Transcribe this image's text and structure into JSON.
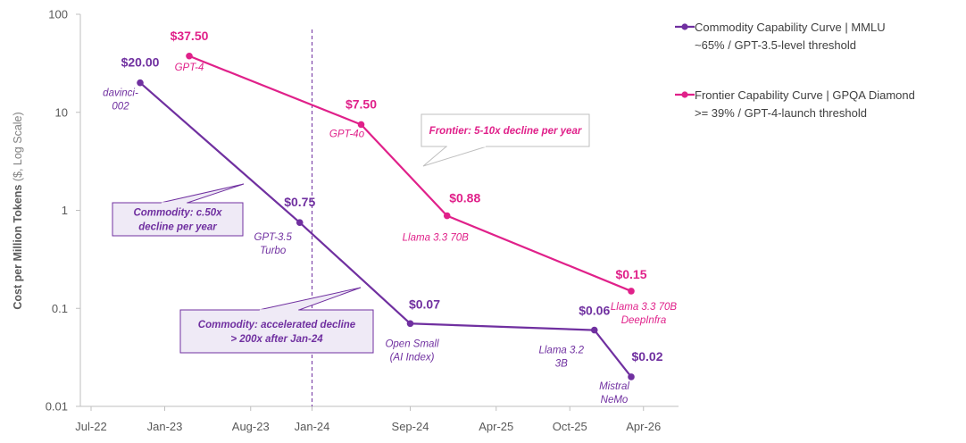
{
  "chart_data": {
    "type": "line",
    "y_scale": "log",
    "ylabel": "Cost per Million Tokens",
    "ylabel_suffix": " ($, Log Scale)",
    "xlabel": "",
    "ylim": [
      0.01,
      100
    ],
    "y_ticks": [
      "100",
      "10",
      "1",
      "0.1",
      "0.01"
    ],
    "x_ticks": [
      "Jul-22",
      "Jan-23",
      "Aug-23",
      "Jan-24",
      "Sep-24",
      "Apr-25",
      "Oct-25",
      "Apr-26"
    ],
    "grid": false,
    "legend_position": "top-right",
    "divider_label_date": "Jan-24",
    "series": [
      {
        "name": "Commodity Capability Curve | MMLU",
        "name_line2": "~65% / GPT-3.5-level threshold",
        "color": "#7030A0",
        "points": [
          {
            "x": "2022-11",
            "y": 20.0,
            "price": "$20.00",
            "model": [
              "davinci-",
              "002"
            ]
          },
          {
            "x": "2023-12",
            "y": 0.75,
            "price": "$0.75",
            "model": [
              "GPT-3.5",
              "Turbo"
            ]
          },
          {
            "x": "2024-09",
            "y": 0.07,
            "price": "$0.07",
            "model": [
              "Open Small",
              "(AI Index)"
            ]
          },
          {
            "x": "2025-12",
            "y": 0.06,
            "price": "$0.06",
            "model": [
              "Llama 3.2",
              "3B"
            ]
          },
          {
            "x": "2026-03",
            "y": 0.02,
            "price": "$0.02",
            "model": [
              "Mistral",
              "NeMo"
            ]
          }
        ]
      },
      {
        "name": "Frontier Capability Curve | GPQA Diamond",
        "name_line2": ">= 39% / GPT-4-launch threshold",
        "color": "#E0218A",
        "points": [
          {
            "x": "2023-03",
            "y": 37.5,
            "price": "$37.50",
            "model": [
              "GPT-4"
            ]
          },
          {
            "x": "2024-05",
            "y": 7.5,
            "price": "$7.50",
            "model": [
              "GPT-4o"
            ]
          },
          {
            "x": "2024-12",
            "y": 0.88,
            "price": "$0.88",
            "model": [
              "Llama 3.3 70B"
            ]
          },
          {
            "x": "2026-03",
            "y": 0.15,
            "price": "$0.15",
            "model": [
              "Llama 3.3 70B",
              "DeepInfra"
            ]
          }
        ]
      }
    ],
    "annotations": [
      {
        "lines": [
          "Commodity: c.50x",
          "decline per year"
        ],
        "color": "#7030A0"
      },
      {
        "lines": [
          "Commodity: accelerated decline",
          "> 200x after Jan-24"
        ],
        "color": "#7030A0"
      },
      {
        "lines": [
          "Frontier: 5-10x decline per year"
        ],
        "color": "#E0218A"
      }
    ]
  }
}
